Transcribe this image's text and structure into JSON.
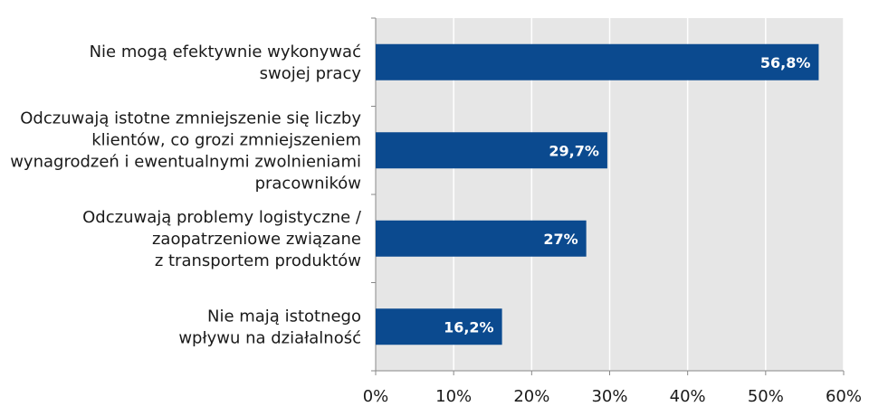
{
  "chart_data": {
    "type": "bar",
    "orientation": "horizontal",
    "categories": [
      [
        "Nie mogą efektywnie wykonywać",
        "swojej pracy"
      ],
      [
        "Odczuwają istotne zmniejszenie się liczby",
        "klientów,  co grozi zmniejszeniem",
        "wynagrodzeń i ewentualnymi zwolnieniami",
        "pracowników"
      ],
      [
        "Odczuwają problemy logistyczne /",
        "zaopatrzeniowe związane",
        "z transportem produktów"
      ],
      [
        "Nie mają istotnego",
        "wpływu na działalność"
      ]
    ],
    "values": [
      56.8,
      29.7,
      27,
      16.2
    ],
    "data_labels": [
      "56,8%",
      "29,7%",
      "27%",
      "16,2%"
    ],
    "xlim": [
      0,
      60
    ],
    "x_ticks": [
      "0%",
      "10%",
      "20%",
      "30%",
      "40%",
      "50%",
      "60%"
    ],
    "grid": true,
    "colors": {
      "bar": "#0b4a8f",
      "plot_background": "#e6e6e6",
      "grid": "#ffffff",
      "axis": "#888888"
    }
  }
}
